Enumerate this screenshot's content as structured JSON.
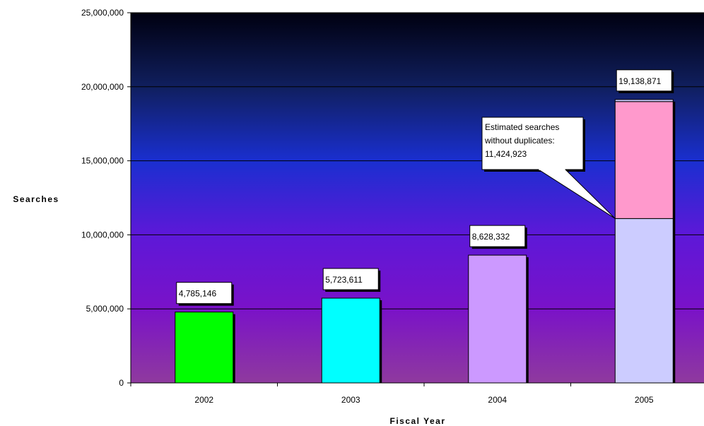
{
  "chart_data": {
    "type": "bar",
    "xlabel": "Fiscal Year",
    "ylabel": "Searches",
    "ylim": [
      0,
      25000000
    ],
    "yticks": [
      0,
      5000000,
      10000000,
      15000000,
      20000000,
      25000000
    ],
    "ytick_labels": [
      "0",
      "5,000,000",
      "10,000,000",
      "15,000,000",
      "20,000,000",
      "25,000,000"
    ],
    "grid": true,
    "categories": [
      "2002",
      "2003",
      "2004",
      "2005"
    ],
    "bars": [
      {
        "category": "2002",
        "value": 4785146,
        "label": "4,785,146",
        "color": "#00ff00"
      },
      {
        "category": "2003",
        "value": 5723611,
        "label": "5,723,611",
        "color": "#00ffff"
      },
      {
        "category": "2004",
        "value": 8628332,
        "label": "8,628,332",
        "color": "#cc99ff"
      },
      {
        "category": "2005",
        "value": 19138871,
        "label": "19,138,871",
        "segments": [
          {
            "value": 11100000,
            "color": "#ccccff"
          },
          {
            "value": 7900000,
            "color": "#ff99cc"
          },
          {
            "value": 138871,
            "color": "#ccccff"
          }
        ]
      }
    ],
    "annotation": {
      "category": "2005",
      "lines": [
        "Estimated searches",
        "without duplicates:",
        "11,424,923"
      ],
      "points_to_value": 11100000
    },
    "background_gradient": [
      "#000010",
      "#101f5e",
      "#1a2fd0",
      "#5d18d8",
      "#7a12c8",
      "#8f3a9e"
    ]
  }
}
